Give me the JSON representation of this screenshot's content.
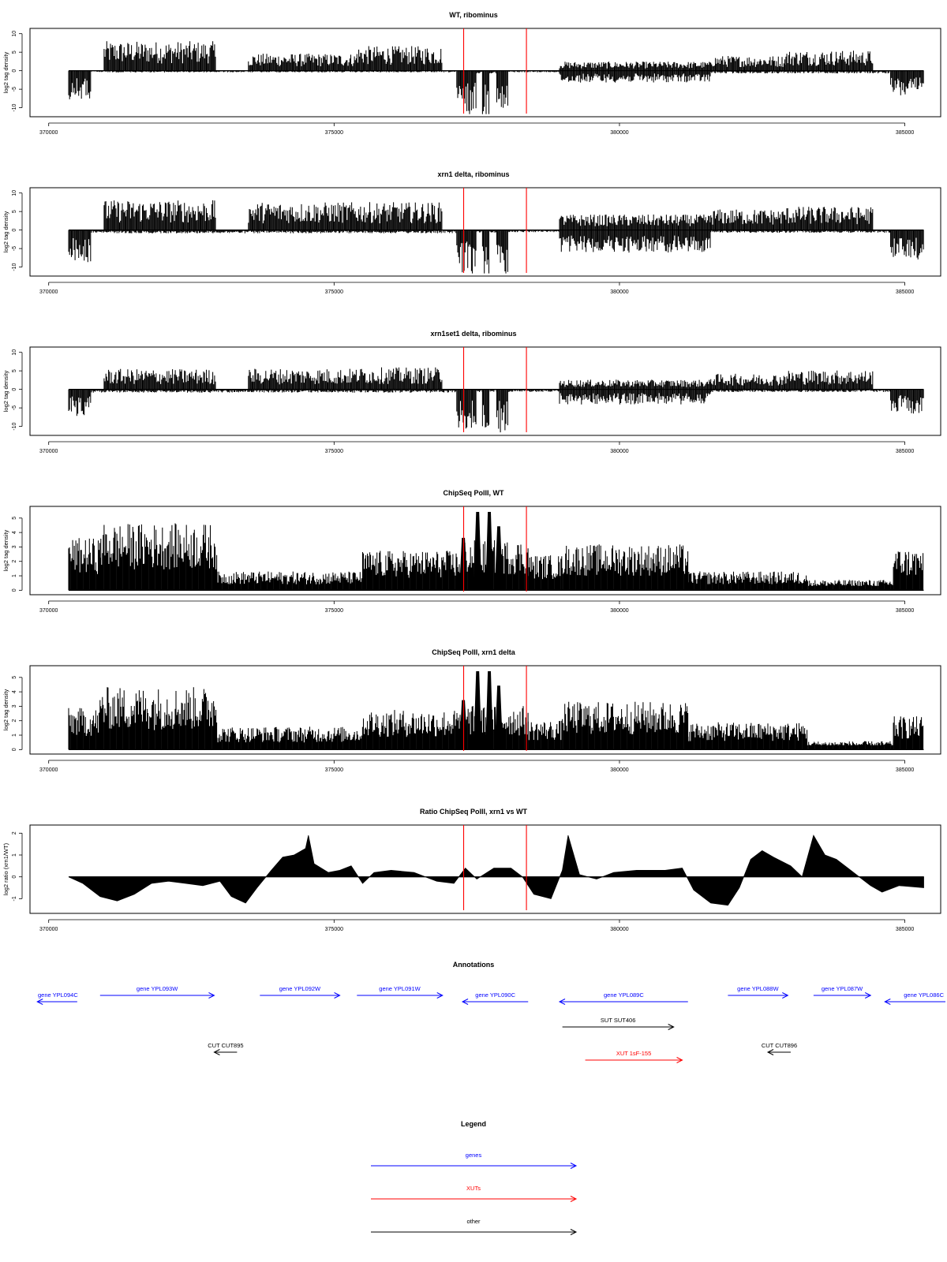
{
  "chart_data": [
    {
      "type": "area",
      "title": "WT, ribominus",
      "ylabel": "log2 tag density",
      "xlim": [
        369700,
        385600
      ],
      "ylim": [
        -12,
        11
      ],
      "xticks": [
        370000,
        375000,
        380000,
        385000
      ],
      "yticks": [
        10,
        5,
        0,
        -5,
        -10
      ],
      "plus_strand_mean": [
        [
          370450,
          370970,
          0
        ],
        [
          370970,
          372930,
          5.5
        ],
        [
          372930,
          373500,
          0.1
        ],
        [
          373500,
          375400,
          3.2
        ],
        [
          375400,
          376900,
          4.6
        ],
        [
          376900,
          378950,
          0.1
        ],
        [
          378950,
          381600,
          1.7
        ],
        [
          381600,
          382900,
          2.8
        ],
        [
          382900,
          384450,
          3.8
        ],
        [
          384450,
          385330,
          0
        ]
      ],
      "minus_strand_mean": [
        [
          370350,
          370750,
          -5.5
        ],
        [
          370750,
          377150,
          -0.3
        ],
        [
          377150,
          377500,
          -8.5
        ],
        [
          377500,
          377600,
          -0.5
        ],
        [
          377600,
          377720,
          -8.5
        ],
        [
          377720,
          377850,
          -0.5
        ],
        [
          377850,
          378050,
          -9
        ],
        [
          378050,
          378950,
          -0.3
        ],
        [
          378950,
          381600,
          -2.2
        ],
        [
          381600,
          384750,
          -0.5
        ],
        [
          384750,
          385330,
          -5
        ]
      ],
      "red_markers": [
        377270,
        378370
      ]
    },
    {
      "type": "area",
      "title": "xrn1 delta, ribominus",
      "ylabel": "log2 tag density",
      "xlim": [
        369700,
        385600
      ],
      "ylim": [
        -12,
        11
      ],
      "xticks": [
        370000,
        375000,
        380000,
        385000
      ],
      "yticks": [
        10,
        5,
        0,
        -5,
        -10
      ],
      "plus_strand_mean": [
        [
          370450,
          370970,
          0
        ],
        [
          370970,
          372930,
          5.6
        ],
        [
          372930,
          373500,
          0.1
        ],
        [
          373500,
          375400,
          5.2
        ],
        [
          375400,
          376900,
          5.2
        ],
        [
          376900,
          378950,
          0.1
        ],
        [
          378950,
          381600,
          2.9
        ],
        [
          381600,
          382900,
          3.9
        ],
        [
          382900,
          384450,
          4.4
        ],
        [
          384450,
          385330,
          0
        ]
      ],
      "minus_strand_mean": [
        [
          370350,
          370750,
          -6
        ],
        [
          370750,
          377150,
          -0.6
        ],
        [
          377150,
          377500,
          -8.5
        ],
        [
          377500,
          377600,
          -0.5
        ],
        [
          377600,
          377720,
          -8.5
        ],
        [
          377720,
          377850,
          -0.5
        ],
        [
          377850,
          378050,
          -9
        ],
        [
          378050,
          378950,
          -0.4
        ],
        [
          378950,
          381600,
          -4.2
        ],
        [
          381600,
          384750,
          -0.5
        ],
        [
          384750,
          385330,
          -5.5
        ]
      ],
      "red_markers": [
        377270,
        378370
      ]
    },
    {
      "type": "area",
      "title": "xrn1set1 delta, ribominus",
      "ylabel": "log2 tag density",
      "xlim": [
        369700,
        385600
      ],
      "ylim": [
        -12,
        11
      ],
      "xticks": [
        370000,
        375000,
        380000,
        385000
      ],
      "yticks": [
        10,
        5,
        0,
        -5,
        -10
      ],
      "plus_strand_mean": [
        [
          370450,
          370970,
          0
        ],
        [
          370970,
          372930,
          3.8
        ],
        [
          372930,
          373500,
          0.1
        ],
        [
          373500,
          375400,
          3.9
        ],
        [
          375400,
          376900,
          4.1
        ],
        [
          376900,
          378950,
          0.1
        ],
        [
          378950,
          381600,
          1.8
        ],
        [
          381600,
          382900,
          2.9
        ],
        [
          382900,
          384450,
          3.6
        ],
        [
          384450,
          385330,
          0
        ]
      ],
      "minus_strand_mean": [
        [
          370350,
          370750,
          -5
        ],
        [
          370750,
          377150,
          -0.6
        ],
        [
          377150,
          377500,
          -7.5
        ],
        [
          377500,
          377600,
          -0.5
        ],
        [
          377600,
          377720,
          -7.5
        ],
        [
          377720,
          377850,
          -0.5
        ],
        [
          377850,
          378050,
          -8
        ],
        [
          378050,
          378950,
          -0.5
        ],
        [
          378950,
          381600,
          -2.8
        ],
        [
          381600,
          384750,
          -0.5
        ],
        [
          384750,
          385330,
          -4.5
        ]
      ],
      "red_markers": [
        377270,
        378370
      ]
    },
    {
      "type": "area",
      "title": "ChipSeq PolII, WT",
      "ylabel": "log2 tag density",
      "xlim": [
        369700,
        385600
      ],
      "ylim": [
        -0.2,
        5.7
      ],
      "xticks": [
        370000,
        375000,
        380000,
        385000
      ],
      "yticks": [
        5,
        4,
        3,
        2,
        1,
        0
      ],
      "signal_mean": [
        [
          370350,
          370900,
          2.5
        ],
        [
          370900,
          372950,
          3.2
        ],
        [
          372950,
          375500,
          0.9
        ],
        [
          375500,
          377250,
          1.9
        ],
        [
          377250,
          378400,
          2.4
        ],
        [
          378400,
          379000,
          1.7
        ],
        [
          379000,
          381200,
          2.2
        ],
        [
          381200,
          383300,
          0.9
        ],
        [
          383300,
          384800,
          0.5
        ],
        [
          384800,
          385330,
          2
        ]
      ],
      "peaks": [
        [
          377200,
          377330,
          3.6
        ],
        [
          377450,
          377580,
          5.4
        ],
        [
          377660,
          377780,
          5.4
        ],
        [
          377820,
          377950,
          4.4
        ]
      ],
      "red_markers": [
        377270,
        378370
      ]
    },
    {
      "type": "area",
      "title": "ChipSeq PolII, xrn1 delta",
      "ylabel": "log2 tag density",
      "xlim": [
        369700,
        385600
      ],
      "ylim": [
        -0.2,
        5.7
      ],
      "xticks": [
        370000,
        375000,
        380000,
        385000
      ],
      "yticks": [
        5,
        4,
        3,
        2,
        1,
        0
      ],
      "signal_mean": [
        [
          370350,
          370900,
          2
        ],
        [
          370900,
          372950,
          3.0
        ],
        [
          372950,
          375500,
          1.1
        ],
        [
          375500,
          377250,
          1.9
        ],
        [
          377250,
          378400,
          2.1
        ],
        [
          378400,
          379000,
          1.4
        ],
        [
          379000,
          381200,
          2.3
        ],
        [
          381200,
          383300,
          1.3
        ],
        [
          383300,
          384800,
          0.4
        ],
        [
          384800,
          385330,
          1.6
        ]
      ],
      "peaks": [
        [
          377200,
          377330,
          3.4
        ],
        [
          377450,
          377580,
          5.4
        ],
        [
          377660,
          377780,
          5.4
        ],
        [
          377820,
          377950,
          4.4
        ]
      ],
      "red_markers": [
        377270,
        378370
      ]
    },
    {
      "type": "area",
      "title": "Ratio ChipSeq PolII, xrn1 vs WT",
      "ylabel": "log2 ratio (xrn1/WT)",
      "xlim": [
        369700,
        385600
      ],
      "ylim": [
        -1.6,
        2.3
      ],
      "xticks": [
        370000,
        375000,
        380000,
        385000
      ],
      "yticks": [
        2,
        1,
        0,
        -1
      ],
      "ratio_curve": [
        [
          370350,
          0
        ],
        [
          370600,
          -0.3
        ],
        [
          370900,
          -0.9
        ],
        [
          371200,
          -1.1
        ],
        [
          371500,
          -0.8
        ],
        [
          371800,
          -0.3
        ],
        [
          372100,
          -0.2
        ],
        [
          372400,
          -0.3
        ],
        [
          372700,
          -0.4
        ],
        [
          373000,
          -0.2
        ],
        [
          373200,
          -0.9
        ],
        [
          373450,
          -1.2
        ],
        [
          373650,
          -0.5
        ],
        [
          373900,
          0.3
        ],
        [
          374100,
          0.9
        ],
        [
          374300,
          1.0
        ],
        [
          374500,
          1.3
        ],
        [
          374550,
          1.9
        ],
        [
          374650,
          0.6
        ],
        [
          374900,
          0.2
        ],
        [
          375100,
          0.3
        ],
        [
          375300,
          0.5
        ],
        [
          375500,
          -0.3
        ],
        [
          375700,
          0.2
        ],
        [
          376000,
          0.3
        ],
        [
          376400,
          0.2
        ],
        [
          376800,
          -0.2
        ],
        [
          377100,
          -0.3
        ],
        [
          377300,
          0.4
        ],
        [
          377500,
          -0.1
        ],
        [
          377800,
          0.4
        ],
        [
          378100,
          0.4
        ],
        [
          378300,
          0
        ],
        [
          378500,
          -0.8
        ],
        [
          378800,
          -1.0
        ],
        [
          379000,
          0.3
        ],
        [
          379100,
          1.9
        ],
        [
          379300,
          0.1
        ],
        [
          379600,
          -0.1
        ],
        [
          379900,
          0.2
        ],
        [
          380300,
          0.3
        ],
        [
          380800,
          0.3
        ],
        [
          381100,
          0.4
        ],
        [
          381300,
          -0.6
        ],
        [
          381600,
          -1.2
        ],
        [
          381900,
          -1.3
        ],
        [
          382100,
          -0.5
        ],
        [
          382300,
          0.8
        ],
        [
          382500,
          1.2
        ],
        [
          382700,
          0.9
        ],
        [
          383000,
          0.5
        ],
        [
          383200,
          0
        ],
        [
          383400,
          1.9
        ],
        [
          383600,
          1.0
        ],
        [
          383800,
          0.8
        ],
        [
          384000,
          0.4
        ],
        [
          384200,
          0
        ],
        [
          384400,
          -0.4
        ],
        [
          384600,
          -0.7
        ],
        [
          384900,
          -0.4
        ],
        [
          385330,
          -0.5
        ]
      ],
      "red_markers": [
        377270,
        378370
      ]
    }
  ],
  "annotations": {
    "title": "Annotations",
    "features": [
      {
        "label": "gene YPL094C",
        "kind": "gene",
        "strand": "-",
        "start": 369800,
        "end": 370500
      },
      {
        "label": "gene YPL093W",
        "kind": "gene",
        "strand": "+",
        "start": 370900,
        "end": 372900
      },
      {
        "label": "gene YPL092W",
        "kind": "gene",
        "strand": "+",
        "start": 373700,
        "end": 375100
      },
      {
        "label": "gene YPL091W",
        "kind": "gene",
        "strand": "+",
        "start": 375400,
        "end": 376900
      },
      {
        "label": "gene YPL090C",
        "kind": "gene",
        "strand": "-",
        "start": 377250,
        "end": 378400
      },
      {
        "label": "gene YPL089C",
        "kind": "gene",
        "strand": "-",
        "start": 378950,
        "end": 381200
      },
      {
        "label": "gene YPL088W",
        "kind": "gene",
        "strand": "+",
        "start": 381900,
        "end": 382950
      },
      {
        "label": "gene YPL087W",
        "kind": "gene",
        "strand": "+",
        "start": 383400,
        "end": 384400
      },
      {
        "label": "gene YPL086C",
        "kind": "gene",
        "strand": "-",
        "start": 384650,
        "end": 385800
      },
      {
        "label": "SUT SUT406",
        "kind": "other",
        "strand": "+",
        "start": 379000,
        "end": 380950
      },
      {
        "label": "CUT CUT895",
        "kind": "other",
        "strand": "-",
        "start": 372900,
        "end": 373300
      },
      {
        "label": "XUT 1sF-155",
        "kind": "xut",
        "strand": "+",
        "start": 379400,
        "end": 381100
      },
      {
        "label": "CUT CUT896",
        "kind": "other",
        "strand": "-",
        "start": 382600,
        "end": 383000
      }
    ]
  },
  "legend": {
    "title": "Legend",
    "items": [
      {
        "label": "genes",
        "color": "#0000ff"
      },
      {
        "label": "XUTs",
        "color": "#ff0000"
      },
      {
        "label": "other",
        "color": "#000000"
      }
    ]
  },
  "colors": {
    "bars": "#000000",
    "marker": "#ff0000",
    "gene": "#0000ff",
    "xut": "#ff0000",
    "other": "#000000",
    "frame": "#000000"
  }
}
